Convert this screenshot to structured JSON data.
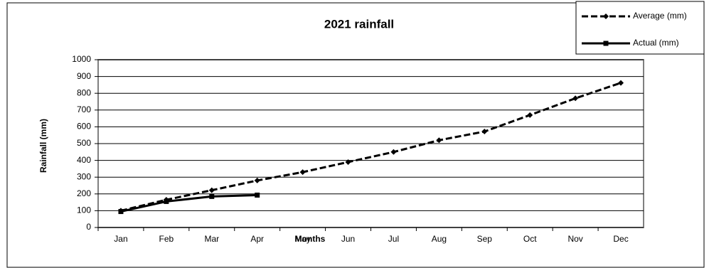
{
  "chart_data": {
    "type": "line",
    "title": "2021 rainfall",
    "x_label": "Months",
    "y_label": "Rainfall (mm)",
    "categories": [
      "Jan",
      "Feb",
      "Mar",
      "Apr",
      "May",
      "Jun",
      "Jul",
      "Aug",
      "Sep",
      "Oct",
      "Nov",
      "Dec"
    ],
    "series": [
      {
        "name": "Average (mm)",
        "color": "#000000",
        "style": "dashed",
        "marker": "diamond",
        "values": [
          100,
          165,
          222,
          280,
          330,
          390,
          450,
          520,
          572,
          670,
          770,
          862
        ]
      },
      {
        "name": "Actual (mm)",
        "color": "#000000",
        "style": "solid",
        "marker": "square",
        "values": [
          95,
          155,
          185,
          193,
          null,
          null,
          null,
          null,
          null,
          null,
          null,
          null
        ]
      }
    ],
    "ylim": [
      0,
      1000
    ],
    "yticks": [
      0,
      100,
      200,
      300,
      400,
      500,
      600,
      700,
      800,
      900,
      1000
    ],
    "grid": true,
    "legend": "top-right"
  }
}
